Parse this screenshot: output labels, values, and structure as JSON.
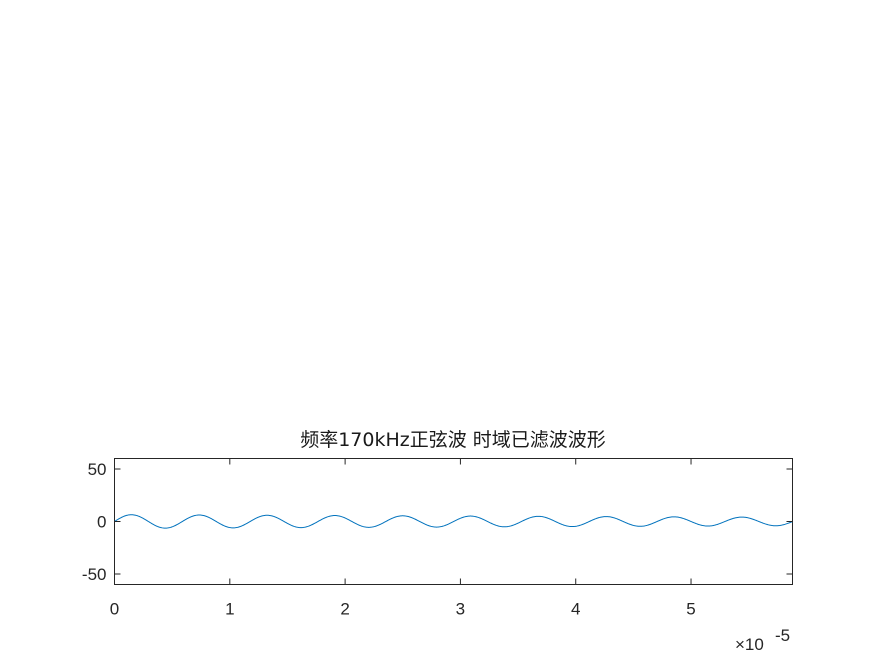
{
  "chart_data": {
    "type": "line",
    "title": "频率170kHz正弦波 时域已滤波波形",
    "xlabel": "",
    "ylabel": "",
    "xlim": [
      0,
      5.88e-05
    ],
    "ylim": [
      -60,
      60
    ],
    "x_ticks": [
      0,
      1e-05,
      2e-05,
      3e-05,
      4e-05,
      5e-05
    ],
    "x_tick_labels": [
      "0",
      "1",
      "2",
      "3",
      "4",
      "5"
    ],
    "x_exponent_label": {
      "base": "×10",
      "exponent": "-5"
    },
    "y_ticks": [
      50,
      0,
      -50
    ],
    "y_tick_labels": [
      "50",
      "0",
      "-50"
    ],
    "grid": false,
    "series": [
      {
        "color": "#0072BD",
        "frequency_hz": 170000,
        "amplitude_start": 6.5,
        "amplitude_end": 4.0,
        "x_samples": [
          0,
          1.5e-06,
          2.9e-06,
          4.4e-06,
          5.9e-06,
          7.4e-06,
          8.8e-06,
          1.03e-05,
          1.18e-05,
          1.32e-05,
          1.47e-05,
          1.62e-05,
          1.76e-05,
          1.91e-05,
          2.06e-05,
          2.21e-05,
          2.35e-05,
          2.5e-05,
          2.65e-05,
          2.79e-05,
          2.94e-05,
          3.09e-05,
          3.24e-05,
          3.38e-05,
          3.53e-05,
          3.68e-05,
          3.82e-05,
          3.97e-05,
          4.12e-05,
          4.26e-05,
          4.41e-05,
          4.56e-05,
          4.71e-05,
          4.85e-05,
          5e-05,
          5.15e-05,
          5.29e-05,
          5.44e-05,
          5.59e-05,
          5.74e-05,
          5.88e-05
        ],
        "y_samples": [
          0,
          4.5,
          6.5,
          4.4,
          0,
          -4.3,
          -6.0,
          -4.2,
          0,
          4.1,
          5.8,
          4.0,
          0,
          -4.0,
          -5.6,
          -3.9,
          0,
          3.8,
          5.4,
          3.8,
          0,
          -3.7,
          -5.2,
          -3.6,
          0,
          3.6,
          5.0,
          3.5,
          0,
          -3.5,
          -4.8,
          -3.4,
          0,
          3.4,
          4.6,
          3.3,
          0,
          -3.2,
          -4.4,
          -3.1,
          0
        ]
      }
    ]
  }
}
